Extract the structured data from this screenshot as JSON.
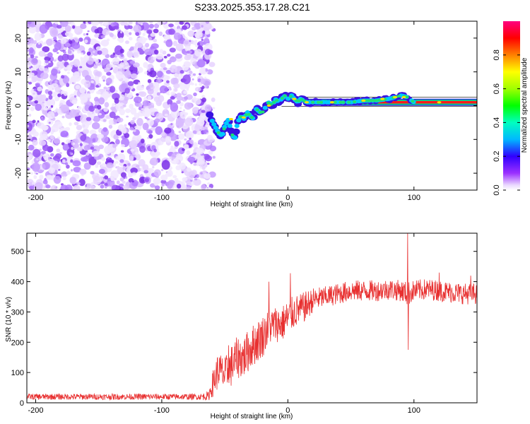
{
  "title": "S233.2025.353.17.28.C21",
  "chart_data": [
    {
      "type": "heatmap",
      "panel": "spectrogram",
      "xlabel": "Height of straight line (km)",
      "ylabel": "Frequency (Hz)",
      "xlim": [
        -207,
        150
      ],
      "ylim": [
        -25,
        25
      ],
      "xticks": [
        -200,
        -100,
        0,
        100
      ],
      "yticks": [
        -20,
        -10,
        0,
        10,
        20
      ],
      "noise_region_x": [
        -207,
        -63
      ],
      "ridge_track": {
        "x": [
          -62,
          -58,
          -55,
          -52,
          -50,
          -47,
          -45,
          -42,
          -40,
          -37,
          -35,
          -32,
          -30,
          -27,
          -25,
          -22,
          -20,
          -17,
          -15,
          -12,
          -10,
          -7,
          -5,
          -2,
          0,
          3,
          5,
          8,
          10,
          15,
          20,
          25,
          30,
          40,
          50,
          60,
          70,
          80,
          85,
          90,
          95,
          100,
          110,
          120,
          130,
          140,
          150
        ],
        "y": [
          -3,
          -6,
          -8,
          -9,
          -6,
          -4,
          -8,
          -10,
          -5,
          -3,
          -4,
          -2,
          -3,
          -4,
          -1,
          -2,
          -2,
          0,
          1,
          0,
          2,
          1,
          2,
          3,
          2,
          3,
          2,
          1,
          2,
          1,
          1,
          1,
          1,
          1,
          1,
          1.5,
          1.5,
          2,
          2.5,
          3,
          2.5,
          1,
          1,
          1,
          1,
          1,
          1
        ]
      },
      "colorbar": {
        "label": "Normalized spectral amplitude",
        "range": [
          0,
          1
        ],
        "ticks": [
          0.0,
          0.2,
          0.4,
          0.6,
          0.8
        ]
      }
    },
    {
      "type": "line",
      "panel": "snr",
      "xlabel": "Height of straight line (km)",
      "ylabel": "SNR (10 * v/v)",
      "xlim": [
        -207,
        150
      ],
      "ylim": [
        0,
        560
      ],
      "xticks": [
        -200,
        -100,
        0,
        100
      ],
      "yticks": [
        0,
        100,
        200,
        300,
        400,
        500
      ],
      "color": "#e83030",
      "series": {
        "name": "SNR",
        "x": [
          -207,
          -180,
          -150,
          -120,
          -90,
          -70,
          -63,
          -58,
          -55,
          -50,
          -45,
          -40,
          -35,
          -30,
          -25,
          -20,
          -15,
          -10,
          -5,
          0,
          5,
          10,
          15,
          20,
          30,
          40,
          50,
          60,
          70,
          80,
          90,
          95,
          100,
          110,
          120,
          130,
          140,
          150
        ],
        "values": [
          20,
          20,
          20,
          20,
          20,
          20,
          22,
          80,
          110,
          90,
          120,
          150,
          150,
          180,
          200,
          220,
          250,
          260,
          260,
          280,
          300,
          310,
          320,
          340,
          350,
          360,
          370,
          370,
          370,
          375,
          370,
          360,
          370,
          375,
          370,
          365,
          360,
          360
        ],
        "noise_amplitude": [
          10,
          10,
          10,
          10,
          10,
          10,
          15,
          55,
          60,
          60,
          70,
          70,
          70,
          70,
          70,
          70,
          60,
          60,
          60,
          60,
          55,
          50,
          50,
          40,
          35,
          35,
          35,
          35,
          35,
          35,
          35,
          40,
          35,
          35,
          35,
          35,
          35,
          35
        ],
        "spikes": [
          {
            "x": 2,
            "value": 428
          },
          {
            "x": -15,
            "value": 400
          },
          {
            "x": -47,
            "value": 190
          },
          {
            "x": 95,
            "value": 560
          },
          {
            "x": 95.5,
            "value": 175
          },
          {
            "x": 120,
            "value": 430
          },
          {
            "x": 145,
            "value": 420
          }
        ]
      }
    }
  ]
}
